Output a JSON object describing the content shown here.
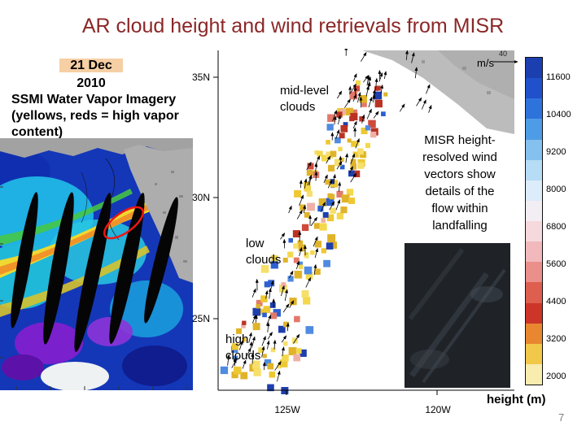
{
  "title": "AR cloud height and wind retrievals from MISR",
  "page_number": "7",
  "left_panel": {
    "date_line1": "21 Dec",
    "date_line2": "2010",
    "caption_lines": [
      "SSMI Water Vapor Imagery",
      "(yellows, reds = high vapor",
      "content)"
    ]
  },
  "misr_map": {
    "lat_labels": [
      "35N",
      "30N",
      "25N"
    ],
    "lon_labels": [
      "125W",
      "120W"
    ],
    "wind_scale_value": "40",
    "wind_scale_unit": "m/s",
    "label_mid_lines": [
      "mid-level",
      "clouds"
    ],
    "label_low_lines": [
      "low",
      "clouds"
    ],
    "label_high_lines": [
      "high",
      "clouds"
    ],
    "annotation_lines": [
      "MISR height-",
      "resolved wind",
      "vectors show",
      "details of the",
      "flow within",
      "landfalling"
    ]
  },
  "colorbar": {
    "tick_labels": [
      "11600",
      "10400",
      "9200",
      "8000",
      "6800",
      "5600",
      "4400",
      "3200",
      "2000"
    ],
    "unit_label": "height (m)",
    "colors": [
      "#1c3fb0",
      "#2050cc",
      "#2e73dc",
      "#4f9ce6",
      "#85c1ef",
      "#b6dcf6",
      "#dcecfa",
      "#f3eef3",
      "#f6d9dd",
      "#f2b9bd",
      "#ea8f8a",
      "#de5f50",
      "#cc3527",
      "#e8872f",
      "#f2c84b",
      "#f8ecae"
    ]
  },
  "band_palette": {
    "red": [
      "#cf4a3c",
      "#b93325",
      "#e2796a",
      "#efb0a6"
    ],
    "yellow": [
      "#eec832",
      "#f6df6a",
      "#e0b32a",
      "#f3d84e"
    ],
    "blue": [
      "#2c5fd0",
      "#4f8be0",
      "#1f3fae"
    ]
  }
}
